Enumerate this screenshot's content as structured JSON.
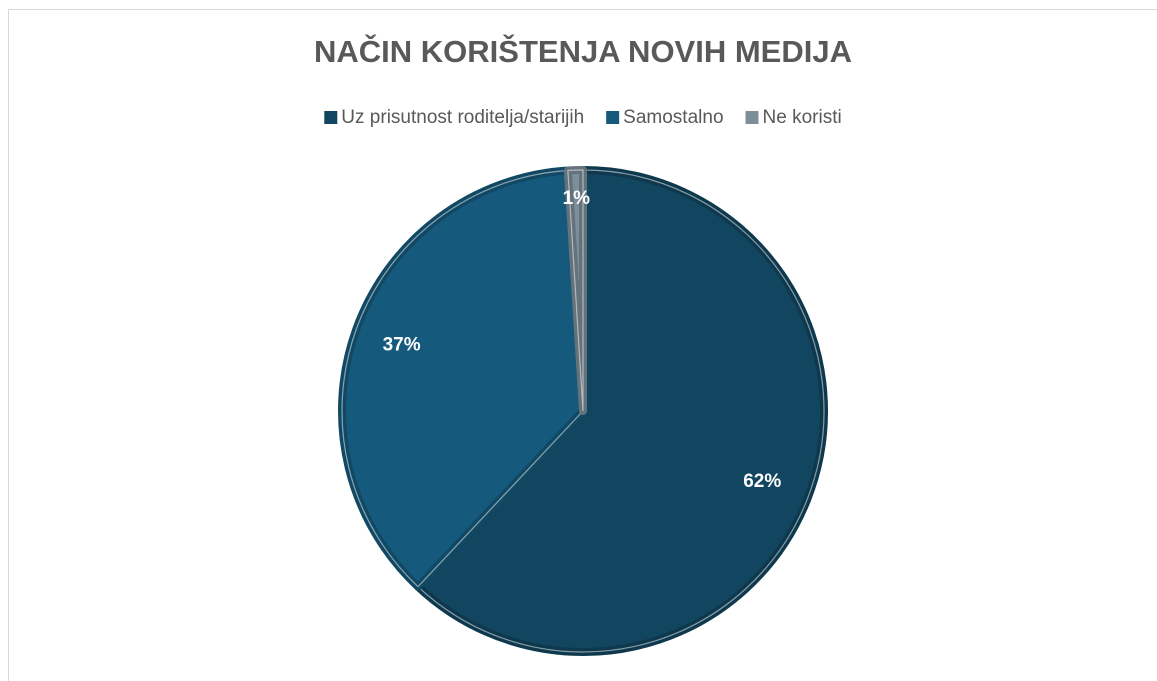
{
  "chart_data": {
    "type": "pie",
    "title": "NAČIN KORIŠTENJA NOVIH MEDIJA",
    "categories": [
      "Uz prisutnost roditelja/starijih",
      "Samostalno",
      "Ne koristi"
    ],
    "values": [
      62,
      37,
      1
    ],
    "value_labels": [
      "62%",
      "37%",
      "1%"
    ],
    "colors": [
      "#124660",
      "#155a7c",
      "#7d8e9b"
    ],
    "legend": "top"
  }
}
